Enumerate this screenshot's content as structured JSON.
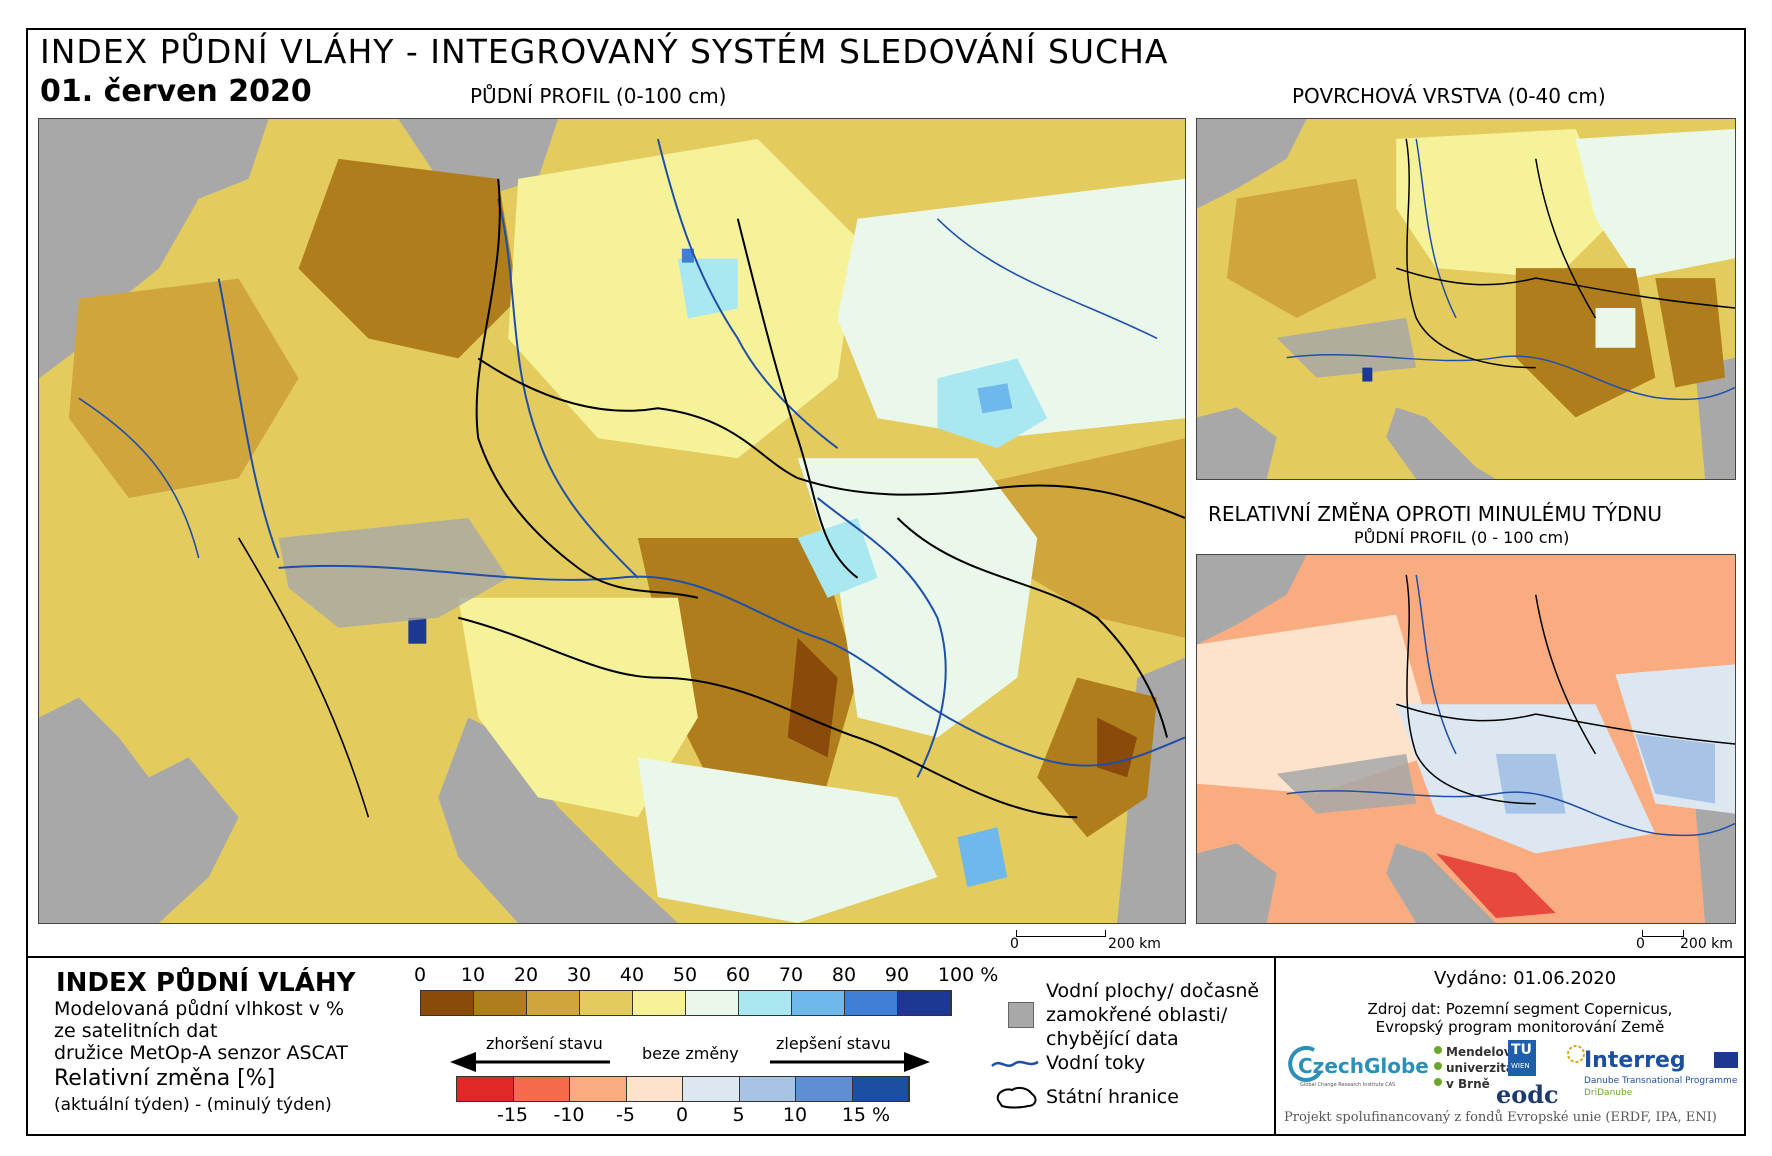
{
  "header": {
    "title": "INDEX PŮDNÍ VLÁHY - INTEGROVANÝ SYSTÉM SLEDOVÁNÍ SUCHA",
    "date": "01. červen 2020"
  },
  "maps": {
    "main_label": "PŮDNÍ PROFIL (0-100 cm)",
    "surface_label": "POVRCHOVÁ VRSTVA (0-40 cm)",
    "change_label": "RELATIVNÍ ZMĚNA OPROTI MINULÉMU TÝDNU",
    "change_sublabel": "PŮDNÍ PROFIL (0 - 100 cm)",
    "scale_main_zero": "0",
    "scale_main_max": "200 km",
    "scale_small_zero": "0",
    "scale_small_max": "200 km"
  },
  "legend": {
    "title": "INDEX PŮDNÍ VLÁHY",
    "line1": "Modelovaná půdní vlhkost v %",
    "line2": "ze satelitních dat",
    "line3": "družice MetOp-A senzor ASCAT",
    "rel_title": "Relativní změna [%]",
    "rel_sub": "(aktuální týden) - (minulý týden)",
    "index_ticks": [
      "0",
      "10",
      "20",
      "30",
      "40",
      "50",
      "60",
      "70",
      "80",
      "90",
      "100 %"
    ],
    "index_colors": [
      "#8a4a0c",
      "#b07d1c",
      "#cfa53c",
      "#e3cb5e",
      "#f6f29a",
      "#e9f8ea",
      "#a9e8f0",
      "#6fb8ec",
      "#3f7fd6",
      "#1d3890"
    ],
    "worse_label": "zhoršení stavu",
    "nochange_label": "beze změny",
    "better_label": "zlepšení stavu",
    "change_ticks": [
      "-15",
      "-10",
      "-5",
      "0",
      "5",
      "10",
      "15 %"
    ],
    "change_colors": [
      "#e02828",
      "#f46a4a",
      "#f9ac80",
      "#fde3cc",
      "#dde7f2",
      "#a7c3e6",
      "#5f8fd2",
      "#1c4fa0"
    ]
  },
  "symbols": {
    "water_label": "Vodní plochy/ dočasně zamokřené oblasti/ chybějící data",
    "water_l1": "Vodní plochy/ dočasně",
    "water_l2": "zamokřené oblasti/",
    "water_l3": "chybějící data",
    "rivers_label": "Vodní toky",
    "borders_label": "Státní hranice"
  },
  "info": {
    "issued": "Vydáno: 01.06.2020",
    "source_l1": "Zdroj dat: Pozemní segment Copernicus,",
    "source_l2": "Evropský program monitorování Země",
    "logo_czechglobe": "CzechGlobe",
    "logo_czechglobe_sub": "Global Change Research Institute CAS",
    "logo_mendelu_l1": "Mendelova",
    "logo_mendelu_l2": "univerzita",
    "logo_mendelu_l3": "v Brně",
    "logo_tu": "TU",
    "logo_tu_sub": "WIEN",
    "logo_eodc": "eodc",
    "logo_interreg": "Interreg",
    "logo_interreg_l2": "Danube Transnational Programme",
    "logo_interreg_l3": "DriDanube",
    "footer": "Projekt spolufinancovaný z fondů Evropské unie (ERDF, IPA, ENI)"
  },
  "colors": {
    "land_grey": "#a8a8a8",
    "river": "#1f4fa8",
    "border": "#000000"
  }
}
